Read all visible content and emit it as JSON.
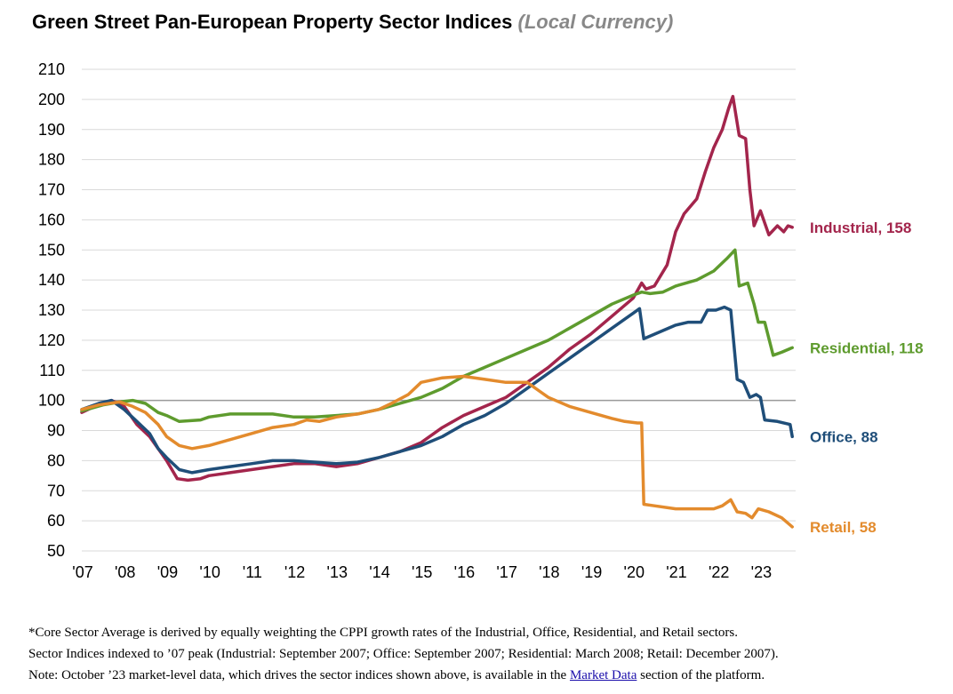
{
  "title": "Green Street Pan-European Property Sector Indices",
  "subtitle": "(Local Currency)",
  "notes": {
    "line1": "*Core Sector Average is derived by equally weighting the CPPI growth rates of the Industrial, Office, Residential, and Retail sectors.",
    "line2": "Sector Indices indexed to ’07 peak (Industrial: September 2007; Office: September 2007; Residential: March 2008; Retail: December 2007).",
    "line3_before": "Note: October ’23 market-level data, which drives the sector indices shown above, is available in the ",
    "line3_link": "Market Data",
    "line3_after": " section of the platform."
  },
  "chart_data": {
    "type": "line",
    "xlim": [
      2007.0,
      2023.83
    ],
    "ylim": [
      50,
      210
    ],
    "yticks": [
      50,
      60,
      70,
      80,
      90,
      100,
      110,
      120,
      130,
      140,
      150,
      160,
      170,
      180,
      190,
      200,
      210
    ],
    "xticks": [
      2007,
      2008,
      2009,
      2010,
      2011,
      2012,
      2013,
      2014,
      2015,
      2016,
      2017,
      2018,
      2019,
      2020,
      2021,
      2022,
      2023
    ],
    "xtick_labels": [
      "'07",
      "'08",
      "'09",
      "'10",
      "'11",
      "'12",
      "'13",
      "'14",
      "'15",
      "'16",
      "'17",
      "'18",
      "'19",
      "'20",
      "'21",
      "'22",
      "'23"
    ],
    "reference_line": 100,
    "grid": "horizontal",
    "series": [
      {
        "name": "Industrial",
        "color": "#a3254c",
        "end_label": "Industrial, 158",
        "points": [
          [
            2007.0,
            96
          ],
          [
            2007.3,
            98
          ],
          [
            2007.7,
            100
          ],
          [
            2008.0,
            98
          ],
          [
            2008.3,
            92
          ],
          [
            2008.6,
            88
          ],
          [
            2008.8,
            84
          ],
          [
            2009.0,
            80
          ],
          [
            2009.25,
            74
          ],
          [
            2009.5,
            73.5
          ],
          [
            2009.8,
            74
          ],
          [
            2010.0,
            75
          ],
          [
            2010.5,
            76
          ],
          [
            2011.0,
            77
          ],
          [
            2011.5,
            78
          ],
          [
            2012.0,
            79
          ],
          [
            2012.5,
            79
          ],
          [
            2013.0,
            78
          ],
          [
            2013.5,
            79
          ],
          [
            2014.0,
            81
          ],
          [
            2014.5,
            83
          ],
          [
            2015.0,
            86
          ],
          [
            2015.5,
            91
          ],
          [
            2016.0,
            95
          ],
          [
            2016.5,
            98
          ],
          [
            2017.0,
            101
          ],
          [
            2017.5,
            106
          ],
          [
            2018.0,
            111
          ],
          [
            2018.5,
            117
          ],
          [
            2019.0,
            122
          ],
          [
            2019.5,
            128
          ],
          [
            2020.0,
            134
          ],
          [
            2020.2,
            139
          ],
          [
            2020.3,
            137
          ],
          [
            2020.5,
            138
          ],
          [
            2020.8,
            145
          ],
          [
            2021.0,
            156
          ],
          [
            2021.2,
            162
          ],
          [
            2021.5,
            167
          ],
          [
            2021.7,
            176
          ],
          [
            2021.9,
            184
          ],
          [
            2022.1,
            190
          ],
          [
            2022.25,
            197
          ],
          [
            2022.35,
            201
          ],
          [
            2022.5,
            188
          ],
          [
            2022.65,
            187
          ],
          [
            2022.75,
            170
          ],
          [
            2022.85,
            158
          ],
          [
            2023.0,
            163
          ],
          [
            2023.2,
            155
          ],
          [
            2023.4,
            158
          ],
          [
            2023.55,
            156
          ],
          [
            2023.65,
            158
          ],
          [
            2023.75,
            157.5
          ]
        ]
      },
      {
        "name": "Residential",
        "color": "#5e9b2e",
        "end_label": "Residential, 118",
        "points": [
          [
            2007.0,
            96.5
          ],
          [
            2007.5,
            98.5
          ],
          [
            2007.9,
            99.5
          ],
          [
            2008.2,
            100
          ],
          [
            2008.5,
            99
          ],
          [
            2008.8,
            96
          ],
          [
            2009.0,
            95
          ],
          [
            2009.3,
            93
          ],
          [
            2009.8,
            93.5
          ],
          [
            2010.0,
            94.5
          ],
          [
            2010.5,
            95.5
          ],
          [
            2011.0,
            95.5
          ],
          [
            2011.5,
            95.5
          ],
          [
            2012.0,
            94.5
          ],
          [
            2012.5,
            94.5
          ],
          [
            2013.0,
            95
          ],
          [
            2013.5,
            95.5
          ],
          [
            2014.0,
            97
          ],
          [
            2014.5,
            99
          ],
          [
            2015.0,
            101
          ],
          [
            2015.5,
            104
          ],
          [
            2016.0,
            108
          ],
          [
            2016.5,
            111
          ],
          [
            2017.0,
            114
          ],
          [
            2017.5,
            117
          ],
          [
            2018.0,
            120
          ],
          [
            2018.5,
            124
          ],
          [
            2019.0,
            128
          ],
          [
            2019.5,
            132
          ],
          [
            2020.0,
            135
          ],
          [
            2020.2,
            136
          ],
          [
            2020.4,
            135.5
          ],
          [
            2020.7,
            136
          ],
          [
            2021.0,
            138
          ],
          [
            2021.5,
            140
          ],
          [
            2021.9,
            143
          ],
          [
            2022.2,
            147
          ],
          [
            2022.4,
            150
          ],
          [
            2022.5,
            138
          ],
          [
            2022.7,
            139
          ],
          [
            2022.85,
            132
          ],
          [
            2022.95,
            126
          ],
          [
            2023.1,
            126
          ],
          [
            2023.3,
            115
          ],
          [
            2023.5,
            116
          ],
          [
            2023.75,
            117.5
          ]
        ]
      },
      {
        "name": "Office",
        "color": "#1f4e79",
        "end_label": "Office, 88",
        "points": [
          [
            2007.0,
            97
          ],
          [
            2007.4,
            99
          ],
          [
            2007.7,
            100
          ],
          [
            2008.0,
            97
          ],
          [
            2008.3,
            93
          ],
          [
            2008.6,
            89
          ],
          [
            2008.8,
            84
          ],
          [
            2009.0,
            81
          ],
          [
            2009.3,
            77
          ],
          [
            2009.6,
            76
          ],
          [
            2010.0,
            77
          ],
          [
            2010.5,
            78
          ],
          [
            2011.0,
            79
          ],
          [
            2011.5,
            80
          ],
          [
            2012.0,
            80
          ],
          [
            2012.5,
            79.5
          ],
          [
            2013.0,
            79
          ],
          [
            2013.5,
            79.5
          ],
          [
            2014.0,
            81
          ],
          [
            2014.5,
            83
          ],
          [
            2015.0,
            85
          ],
          [
            2015.5,
            88
          ],
          [
            2016.0,
            92
          ],
          [
            2016.5,
            95
          ],
          [
            2017.0,
            99
          ],
          [
            2017.5,
            104
          ],
          [
            2018.0,
            109
          ],
          [
            2018.5,
            114
          ],
          [
            2019.0,
            119
          ],
          [
            2019.5,
            124
          ],
          [
            2019.8,
            127
          ],
          [
            2020.0,
            129
          ],
          [
            2020.15,
            130.5
          ],
          [
            2020.25,
            120.5
          ],
          [
            2020.5,
            122
          ],
          [
            2021.0,
            125
          ],
          [
            2021.3,
            126
          ],
          [
            2021.6,
            126
          ],
          [
            2021.75,
            130
          ],
          [
            2021.95,
            130
          ],
          [
            2022.15,
            131
          ],
          [
            2022.3,
            130
          ],
          [
            2022.45,
            107
          ],
          [
            2022.6,
            106
          ],
          [
            2022.75,
            101
          ],
          [
            2022.9,
            102
          ],
          [
            2023.0,
            101
          ],
          [
            2023.1,
            93.5
          ],
          [
            2023.4,
            93
          ],
          [
            2023.7,
            92
          ],
          [
            2023.75,
            88
          ]
        ]
      },
      {
        "name": "Retail",
        "color": "#e38b2d",
        "end_label": "Retail, 58",
        "points": [
          [
            2007.0,
            97
          ],
          [
            2007.4,
            98.5
          ],
          [
            2007.9,
            99.5
          ],
          [
            2008.2,
            98
          ],
          [
            2008.5,
            96
          ],
          [
            2008.8,
            92
          ],
          [
            2009.0,
            88
          ],
          [
            2009.3,
            85
          ],
          [
            2009.6,
            84
          ],
          [
            2010.0,
            85
          ],
          [
            2010.5,
            87
          ],
          [
            2011.0,
            89
          ],
          [
            2011.5,
            91
          ],
          [
            2012.0,
            92
          ],
          [
            2012.3,
            93.5
          ],
          [
            2012.6,
            93
          ],
          [
            2013.0,
            94.5
          ],
          [
            2013.5,
            95.5
          ],
          [
            2014.0,
            97
          ],
          [
            2014.3,
            99
          ],
          [
            2014.7,
            102
          ],
          [
            2015.0,
            106
          ],
          [
            2015.5,
            107.5
          ],
          [
            2016.0,
            108
          ],
          [
            2016.5,
            107
          ],
          [
            2017.0,
            106
          ],
          [
            2017.5,
            106
          ],
          [
            2017.8,
            103
          ],
          [
            2018.0,
            101
          ],
          [
            2018.5,
            98
          ],
          [
            2019.0,
            96
          ],
          [
            2019.5,
            94
          ],
          [
            2019.8,
            93
          ],
          [
            2020.1,
            92.5
          ],
          [
            2020.2,
            92.5
          ],
          [
            2020.25,
            65.5
          ],
          [
            2020.5,
            65
          ],
          [
            2021.0,
            64
          ],
          [
            2021.5,
            64
          ],
          [
            2021.9,
            64
          ],
          [
            2022.1,
            65
          ],
          [
            2022.3,
            67
          ],
          [
            2022.45,
            63
          ],
          [
            2022.65,
            62.5
          ],
          [
            2022.8,
            61
          ],
          [
            2022.95,
            64
          ],
          [
            2023.2,
            63
          ],
          [
            2023.5,
            61
          ],
          [
            2023.75,
            58
          ]
        ]
      }
    ]
  }
}
